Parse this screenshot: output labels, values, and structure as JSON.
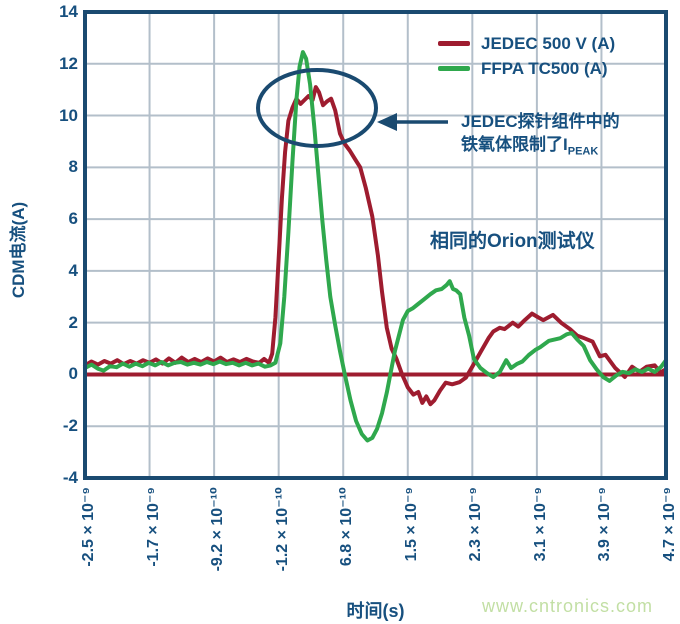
{
  "figure": {
    "x_axis_title": "时间(s)",
    "y_axis_title": "CDM电流(A)",
    "watermark": "www.cntronics.com"
  },
  "annotations": {
    "ferrite_line1": "JEDEC探针组件中的",
    "ferrite_line2": "铁氧体限制了I",
    "ferrite_sub": "PEAK",
    "orion": "相同的Orion测试仪"
  },
  "colors": {
    "navy": "#17507f",
    "border": "#1a4a70",
    "grid": "#b3bfca",
    "red_series": "#9e1c2f",
    "green_series": "#2fa84d",
    "watermark": "#c2dfa4"
  },
  "chart_data": {
    "type": "line",
    "title": "",
    "xlabel": "时间(s)",
    "ylabel": "CDM电流(A)",
    "x_unit": "ns",
    "xlim": [
      -2.5,
      4.7
    ],
    "ylim": [
      -4,
      14
    ],
    "grid": true,
    "legend_position": "top-right-inside",
    "x_tick_values": [
      -2.5,
      -1.7,
      -0.9,
      -0.1,
      0.7,
      1.5,
      2.3,
      3.1,
      3.9,
      4.7
    ],
    "x_tick_labels": [
      "-2.5 × 10⁻⁹",
      "-1.7 × 10⁻⁹",
      "-9.2 × 10⁻¹⁰",
      "-1.2 × 10⁻¹⁰",
      "6.8 × 10⁻¹⁰",
      "1.5 × 10⁻⁹",
      "2.3 × 10⁻⁹",
      "3.1 × 10⁻⁹",
      "3.9 × 10⁻⁹",
      "4.7 × 10⁻⁹"
    ],
    "y_tick_values": [
      14,
      12,
      10,
      8,
      6,
      4,
      2,
      0,
      -2,
      -4
    ],
    "y_tick_labels": [
      "14",
      "12",
      "10",
      "8",
      "6",
      "4",
      "2",
      "0",
      "-2",
      "-4"
    ],
    "zero_line": {
      "value": 0,
      "color": "#9e1c2f"
    },
    "ellipse_annotation": {
      "note": "circles both current peaks"
    },
    "series": [
      {
        "name": "JEDEC 500 V (A)",
        "color": "#9e1c2f",
        "points": [
          [
            -2.5,
            0.35
          ],
          [
            -2.42,
            0.5
          ],
          [
            -2.34,
            0.38
          ],
          [
            -2.26,
            0.52
          ],
          [
            -2.18,
            0.42
          ],
          [
            -2.1,
            0.55
          ],
          [
            -2.02,
            0.4
          ],
          [
            -1.94,
            0.52
          ],
          [
            -1.86,
            0.42
          ],
          [
            -1.78,
            0.55
          ],
          [
            -1.7,
            0.45
          ],
          [
            -1.62,
            0.58
          ],
          [
            -1.54,
            0.42
          ],
          [
            -1.46,
            0.62
          ],
          [
            -1.38,
            0.45
          ],
          [
            -1.3,
            0.65
          ],
          [
            -1.22,
            0.48
          ],
          [
            -1.14,
            0.6
          ],
          [
            -1.06,
            0.48
          ],
          [
            -0.98,
            0.62
          ],
          [
            -0.9,
            0.5
          ],
          [
            -0.82,
            0.65
          ],
          [
            -0.74,
            0.48
          ],
          [
            -0.66,
            0.58
          ],
          [
            -0.58,
            0.48
          ],
          [
            -0.5,
            0.6
          ],
          [
            -0.42,
            0.5
          ],
          [
            -0.34,
            0.45
          ],
          [
            -0.28,
            0.6
          ],
          [
            -0.22,
            0.45
          ],
          [
            -0.18,
            0.8
          ],
          [
            -0.14,
            2.2
          ],
          [
            -0.1,
            4.5
          ],
          [
            -0.06,
            6.8
          ],
          [
            -0.02,
            8.6
          ],
          [
            0.02,
            9.8
          ],
          [
            0.07,
            10.3
          ],
          [
            0.12,
            10.65
          ],
          [
            0.17,
            10.45
          ],
          [
            0.22,
            10.6
          ],
          [
            0.27,
            10.75
          ],
          [
            0.32,
            10.6
          ],
          [
            0.36,
            11.1
          ],
          [
            0.4,
            10.9
          ],
          [
            0.45,
            10.4
          ],
          [
            0.5,
            10.55
          ],
          [
            0.55,
            10.65
          ],
          [
            0.6,
            10.2
          ],
          [
            0.66,
            9.3
          ],
          [
            0.72,
            8.9
          ],
          [
            0.78,
            8.65
          ],
          [
            0.85,
            8.3
          ],
          [
            0.91,
            8.0
          ],
          [
            0.98,
            7.2
          ],
          [
            1.06,
            6.1
          ],
          [
            1.13,
            4.6
          ],
          [
            1.18,
            3.2
          ],
          [
            1.24,
            1.8
          ],
          [
            1.3,
            1.0
          ],
          [
            1.36,
            0.6
          ],
          [
            1.43,
            0.0
          ],
          [
            1.5,
            -0.5
          ],
          [
            1.57,
            -0.78
          ],
          [
            1.63,
            -0.68
          ],
          [
            1.68,
            -1.1
          ],
          [
            1.73,
            -0.85
          ],
          [
            1.78,
            -1.15
          ],
          [
            1.83,
            -1.0
          ],
          [
            1.9,
            -0.62
          ],
          [
            1.97,
            -0.32
          ],
          [
            2.05,
            -0.38
          ],
          [
            2.14,
            -0.3
          ],
          [
            2.22,
            -0.12
          ],
          [
            2.3,
            0.3
          ],
          [
            2.4,
            0.85
          ],
          [
            2.5,
            1.4
          ],
          [
            2.56,
            1.66
          ],
          [
            2.64,
            1.8
          ],
          [
            2.7,
            1.75
          ],
          [
            2.8,
            2.0
          ],
          [
            2.87,
            1.85
          ],
          [
            2.95,
            2.1
          ],
          [
            3.04,
            2.35
          ],
          [
            3.12,
            2.2
          ],
          [
            3.18,
            2.1
          ],
          [
            3.3,
            2.3
          ],
          [
            3.4,
            2.0
          ],
          [
            3.51,
            1.75
          ],
          [
            3.6,
            1.5
          ],
          [
            3.67,
            1.42
          ],
          [
            3.79,
            1.27
          ],
          [
            3.88,
            0.7
          ],
          [
            3.95,
            0.76
          ],
          [
            4.07,
            0.25
          ],
          [
            4.14,
            0.05
          ],
          [
            4.19,
            -0.1
          ],
          [
            4.28,
            0.3
          ],
          [
            4.37,
            0.1
          ],
          [
            4.46,
            0.3
          ],
          [
            4.56,
            0.35
          ],
          [
            4.63,
            0.08
          ],
          [
            4.7,
            0.2
          ]
        ]
      },
      {
        "name": "FFPA TC500 (A)",
        "color": "#2fa84d",
        "points": [
          [
            -2.5,
            0.25
          ],
          [
            -2.42,
            0.38
          ],
          [
            -2.34,
            0.22
          ],
          [
            -2.27,
            0.15
          ],
          [
            -2.19,
            0.32
          ],
          [
            -2.11,
            0.28
          ],
          [
            -2.03,
            0.42
          ],
          [
            -1.95,
            0.3
          ],
          [
            -1.87,
            0.42
          ],
          [
            -1.79,
            0.32
          ],
          [
            -1.71,
            0.45
          ],
          [
            -1.63,
            0.35
          ],
          [
            -1.55,
            0.48
          ],
          [
            -1.47,
            0.35
          ],
          [
            -1.39,
            0.45
          ],
          [
            -1.31,
            0.48
          ],
          [
            -1.23,
            0.38
          ],
          [
            -1.15,
            0.45
          ],
          [
            -1.07,
            0.38
          ],
          [
            -0.99,
            0.48
          ],
          [
            -0.91,
            0.4
          ],
          [
            -0.83,
            0.5
          ],
          [
            -0.75,
            0.4
          ],
          [
            -0.67,
            0.45
          ],
          [
            -0.59,
            0.35
          ],
          [
            -0.51,
            0.45
          ],
          [
            -0.43,
            0.35
          ],
          [
            -0.35,
            0.42
          ],
          [
            -0.27,
            0.3
          ],
          [
            -0.2,
            0.35
          ],
          [
            -0.14,
            0.45
          ],
          [
            -0.08,
            1.2
          ],
          [
            -0.03,
            3.0
          ],
          [
            0.02,
            5.5
          ],
          [
            0.07,
            8.2
          ],
          [
            0.12,
            10.6
          ],
          [
            0.16,
            11.9
          ],
          [
            0.2,
            12.45
          ],
          [
            0.24,
            12.2
          ],
          [
            0.29,
            11.2
          ],
          [
            0.34,
            9.6
          ],
          [
            0.39,
            7.8
          ],
          [
            0.44,
            6.0
          ],
          [
            0.49,
            4.4
          ],
          [
            0.54,
            3.0
          ],
          [
            0.6,
            1.9
          ],
          [
            0.66,
            0.9
          ],
          [
            0.72,
            0.0
          ],
          [
            0.79,
            -1.0
          ],
          [
            0.86,
            -1.8
          ],
          [
            0.93,
            -2.3
          ],
          [
            1.0,
            -2.55
          ],
          [
            1.06,
            -2.45
          ],
          [
            1.12,
            -2.1
          ],
          [
            1.18,
            -1.5
          ],
          [
            1.24,
            -0.7
          ],
          [
            1.29,
            0.1
          ],
          [
            1.34,
            0.9
          ],
          [
            1.39,
            1.5
          ],
          [
            1.44,
            2.1
          ],
          [
            1.5,
            2.45
          ],
          [
            1.56,
            2.55
          ],
          [
            1.62,
            2.7
          ],
          [
            1.7,
            2.9
          ],
          [
            1.78,
            3.1
          ],
          [
            1.85,
            3.25
          ],
          [
            1.92,
            3.3
          ],
          [
            1.98,
            3.45
          ],
          [
            2.02,
            3.6
          ],
          [
            2.06,
            3.3
          ],
          [
            2.1,
            3.25
          ],
          [
            2.15,
            3.1
          ],
          [
            2.2,
            2.2
          ],
          [
            2.26,
            1.5
          ],
          [
            2.32,
            0.6
          ],
          [
            2.4,
            0.25
          ],
          [
            2.48,
            0.05
          ],
          [
            2.56,
            -0.1
          ],
          [
            2.64,
            0.1
          ],
          [
            2.72,
            0.55
          ],
          [
            2.78,
            0.25
          ],
          [
            2.85,
            0.4
          ],
          [
            2.92,
            0.5
          ],
          [
            3.0,
            0.75
          ],
          [
            3.08,
            0.95
          ],
          [
            3.14,
            1.05
          ],
          [
            3.25,
            1.3
          ],
          [
            3.39,
            1.4
          ],
          [
            3.47,
            1.55
          ],
          [
            3.53,
            1.6
          ],
          [
            3.6,
            1.35
          ],
          [
            3.68,
            1.1
          ],
          [
            3.76,
            0.55
          ],
          [
            3.84,
            0.2
          ],
          [
            3.92,
            -0.1
          ],
          [
            4.0,
            -0.25
          ],
          [
            4.08,
            -0.05
          ],
          [
            4.16,
            0.1
          ],
          [
            4.24,
            0.05
          ],
          [
            4.32,
            0.2
          ],
          [
            4.4,
            0.1
          ],
          [
            4.48,
            0.22
          ],
          [
            4.56,
            0.1
          ],
          [
            4.64,
            0.3
          ],
          [
            4.7,
            0.55
          ]
        ]
      }
    ]
  }
}
